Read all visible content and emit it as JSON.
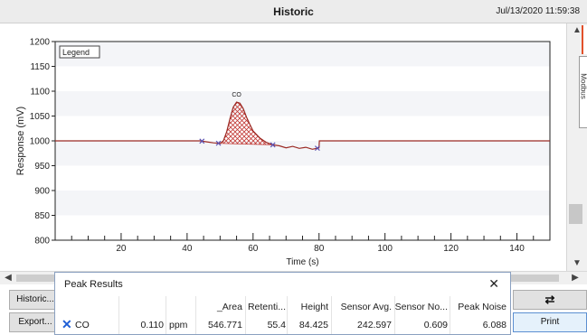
{
  "window": {
    "title": "Historic",
    "timestamp": "Jul/13/2020 11:59:38"
  },
  "chart_data": {
    "type": "line",
    "ylabel": "Response (mV)",
    "xlabel": "Time (s)",
    "legend_label": "Legend",
    "ylim": [
      800,
      1200
    ],
    "xlim": [
      0,
      150
    ],
    "y_ticks": [
      800,
      850,
      900,
      950,
      1000,
      1050,
      1100,
      1150,
      1200
    ],
    "x_ticks": [
      20,
      40,
      60,
      80,
      100,
      120,
      140
    ],
    "grid": true,
    "series": [
      {
        "x": [
          0,
          44,
          46,
          48,
          50,
          51,
          52,
          53,
          54,
          55,
          56,
          57,
          58,
          59,
          60,
          62,
          64,
          66,
          68,
          70,
          72,
          74,
          76,
          78,
          80,
          80.1,
          100,
          120,
          150
        ],
        "values": [
          1000,
          1000,
          998,
          996,
          995,
          1000,
          1018,
          1045,
          1068,
          1078,
          1076,
          1065,
          1048,
          1033,
          1020,
          1006,
          997,
          992,
          990,
          986,
          989,
          985,
          987,
          983,
          986,
          1000,
          1000,
          1000,
          1000
        ]
      }
    ],
    "peak": {
      "label": "CO",
      "start_x": 50,
      "end_x": 66
    },
    "markers_x": [
      44.5,
      49.5,
      66,
      79.5
    ]
  },
  "side_tab_label": "Modbus",
  "buttons": {
    "historic": "Historic...",
    "export": "Export...",
    "swap": "⇄",
    "print": "Print"
  },
  "peak_results": {
    "title": "Peak Results",
    "close": "✕",
    "columns": [
      "_Area",
      "Retenti...",
      "Height",
      "Sensor Avg.",
      "Sensor No...",
      "Peak Noise"
    ],
    "row": {
      "name": "CO",
      "value": "0.110",
      "unit": "ppm",
      "area": "546.771",
      "retention": "55.4",
      "height": "84.425",
      "sensor_avg": "242.597",
      "sensor_noise": "0.609",
      "peak_noise": "6.088"
    }
  },
  "colors": {
    "trace": "#9b2a24",
    "marker": "#5a4fb0",
    "peak_fill": "#c23a36"
  }
}
